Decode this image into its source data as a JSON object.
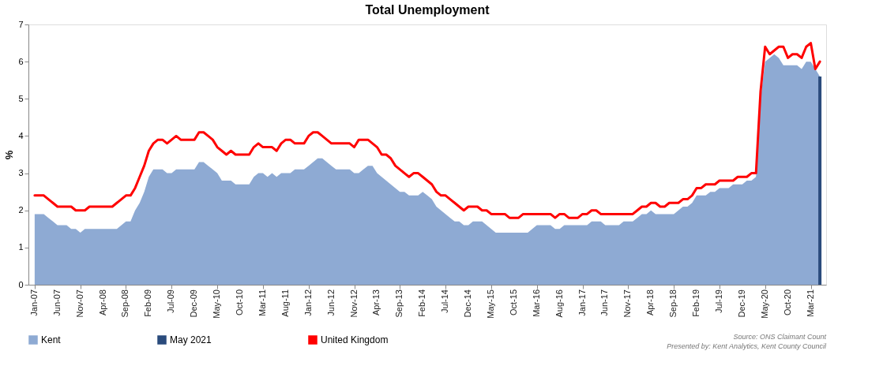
{
  "chart_data": {
    "type": "area",
    "title": "Total Unemployment",
    "ylabel": "%",
    "categories": [
      "Jan-07",
      null,
      null,
      null,
      null,
      "Jun-07",
      null,
      null,
      null,
      null,
      "Nov-07",
      null,
      null,
      null,
      null,
      "Apr-08",
      null,
      null,
      null,
      null,
      "Sep-08",
      null,
      null,
      null,
      null,
      "Feb-09",
      null,
      null,
      null,
      null,
      "Jul-09",
      null,
      null,
      null,
      null,
      "Dec-09",
      null,
      null,
      null,
      null,
      "May-10",
      null,
      null,
      null,
      null,
      "Oct-10",
      null,
      null,
      null,
      null,
      "Mar-11",
      null,
      null,
      null,
      null,
      "Aug-11",
      null,
      null,
      null,
      null,
      "Jan-12",
      null,
      null,
      null,
      null,
      "Jun-12",
      null,
      null,
      null,
      null,
      "Nov-12",
      null,
      null,
      null,
      null,
      "Apr-13",
      null,
      null,
      null,
      null,
      "Sep-13",
      null,
      null,
      null,
      null,
      "Feb-14",
      null,
      null,
      null,
      null,
      "Jul-14",
      null,
      null,
      null,
      null,
      "Dec-14",
      null,
      null,
      null,
      null,
      "May-15",
      null,
      null,
      null,
      null,
      "Oct-15",
      null,
      null,
      null,
      null,
      "Mar-16",
      null,
      null,
      null,
      null,
      "Aug-16",
      null,
      null,
      null,
      null,
      "Jan-17",
      null,
      null,
      null,
      null,
      "Jun-17",
      null,
      null,
      null,
      null,
      "Nov-17",
      null,
      null,
      null,
      null,
      "Apr-18",
      null,
      null,
      null,
      null,
      "Sep-18",
      null,
      null,
      null,
      null,
      "Feb-19",
      null,
      null,
      null,
      null,
      "Jul-19",
      null,
      null,
      null,
      null,
      "Dec-19",
      null,
      null,
      null,
      null,
      "May-20",
      null,
      null,
      null,
      null,
      "Oct-20",
      null,
      null,
      null,
      null,
      "Mar-21",
      null,
      null
    ],
    "series": [
      {
        "name": "Kent",
        "color": "#8eaad3",
        "values": [
          1.9,
          1.9,
          1.9,
          1.8,
          1.7,
          1.6,
          1.6,
          1.6,
          1.5,
          1.5,
          1.4,
          1.5,
          1.5,
          1.5,
          1.5,
          1.5,
          1.5,
          1.5,
          1.5,
          1.6,
          1.7,
          1.7,
          2.0,
          2.2,
          2.5,
          2.9,
          3.1,
          3.1,
          3.1,
          3.0,
          3.0,
          3.1,
          3.1,
          3.1,
          3.1,
          3.1,
          3.3,
          3.3,
          3.2,
          3.1,
          3.0,
          2.8,
          2.8,
          2.8,
          2.7,
          2.7,
          2.7,
          2.7,
          2.9,
          3.0,
          3.0,
          2.9,
          3.0,
          2.9,
          3.0,
          3.0,
          3.0,
          3.1,
          3.1,
          3.1,
          3.2,
          3.3,
          3.4,
          3.4,
          3.3,
          3.2,
          3.1,
          3.1,
          3.1,
          3.1,
          3.0,
          3.0,
          3.1,
          3.2,
          3.2,
          3.0,
          2.9,
          2.8,
          2.7,
          2.6,
          2.5,
          2.5,
          2.4,
          2.4,
          2.4,
          2.5,
          2.4,
          2.3,
          2.1,
          2.0,
          1.9,
          1.8,
          1.7,
          1.7,
          1.6,
          1.6,
          1.7,
          1.7,
          1.7,
          1.6,
          1.5,
          1.4,
          1.4,
          1.4,
          1.4,
          1.4,
          1.4,
          1.4,
          1.4,
          1.5,
          1.6,
          1.6,
          1.6,
          1.6,
          1.5,
          1.5,
          1.6,
          1.6,
          1.6,
          1.6,
          1.6,
          1.6,
          1.7,
          1.7,
          1.7,
          1.6,
          1.6,
          1.6,
          1.6,
          1.7,
          1.7,
          1.7,
          1.8,
          1.9,
          1.9,
          2.0,
          1.9,
          1.9,
          1.9,
          1.9,
          1.9,
          2.0,
          2.1,
          2.1,
          2.2,
          2.4,
          2.4,
          2.4,
          2.5,
          2.5,
          2.6,
          2.6,
          2.6,
          2.7,
          2.7,
          2.7,
          2.8,
          2.8,
          2.9,
          5.0,
          6.0,
          6.1,
          6.2,
          6.1,
          5.9,
          5.9,
          5.9,
          5.9,
          5.8,
          6.0,
          6.0,
          5.8,
          5.6
        ]
      },
      {
        "name": "May 2021",
        "type": "bar",
        "color": "#2a4b7c",
        "values": [
          null,
          null,
          null,
          null,
          null,
          null,
          null,
          null,
          null,
          null,
          null,
          null,
          null,
          null,
          null,
          null,
          null,
          null,
          null,
          null,
          null,
          null,
          null,
          null,
          null,
          null,
          null,
          null,
          null,
          null,
          null,
          null,
          null,
          null,
          null,
          null,
          null,
          null,
          null,
          null,
          null,
          null,
          null,
          null,
          null,
          null,
          null,
          null,
          null,
          null,
          null,
          null,
          null,
          null,
          null,
          null,
          null,
          null,
          null,
          null,
          null,
          null,
          null,
          null,
          null,
          null,
          null,
          null,
          null,
          null,
          null,
          null,
          null,
          null,
          null,
          null,
          null,
          null,
          null,
          null,
          null,
          null,
          null,
          null,
          null,
          null,
          null,
          null,
          null,
          null,
          null,
          null,
          null,
          null,
          null,
          null,
          null,
          null,
          null,
          null,
          null,
          null,
          null,
          null,
          null,
          null,
          null,
          null,
          null,
          null,
          null,
          null,
          null,
          null,
          null,
          null,
          null,
          null,
          null,
          null,
          null,
          null,
          null,
          null,
          null,
          null,
          null,
          null,
          null,
          null,
          null,
          null,
          null,
          null,
          null,
          null,
          null,
          null,
          null,
          null,
          null,
          null,
          null,
          null,
          null,
          null,
          null,
          null,
          null,
          null,
          null,
          null,
          null,
          null,
          null,
          null,
          null,
          null,
          null,
          null,
          null,
          null,
          null,
          null,
          null,
          null,
          null,
          null,
          null,
          null,
          null,
          null,
          5.6
        ]
      },
      {
        "name": "United Kingdom",
        "type": "line",
        "color": "#ff0000",
        "values": [
          2.4,
          2.4,
          2.4,
          2.3,
          2.2,
          2.1,
          2.1,
          2.1,
          2.1,
          2.0,
          2.0,
          2.0,
          2.1,
          2.1,
          2.1,
          2.1,
          2.1,
          2.1,
          2.2,
          2.3,
          2.4,
          2.4,
          2.6,
          2.9,
          3.2,
          3.6,
          3.8,
          3.9,
          3.9,
          3.8,
          3.9,
          4.0,
          3.9,
          3.9,
          3.9,
          3.9,
          4.1,
          4.1,
          4.0,
          3.9,
          3.7,
          3.6,
          3.5,
          3.6,
          3.5,
          3.5,
          3.5,
          3.5,
          3.7,
          3.8,
          3.7,
          3.7,
          3.7,
          3.6,
          3.8,
          3.9,
          3.9,
          3.8,
          3.8,
          3.8,
          4.0,
          4.1,
          4.1,
          4.0,
          3.9,
          3.8,
          3.8,
          3.8,
          3.8,
          3.8,
          3.7,
          3.9,
          3.9,
          3.9,
          3.8,
          3.7,
          3.5,
          3.5,
          3.4,
          3.2,
          3.1,
          3.0,
          2.9,
          3.0,
          3.0,
          2.9,
          2.8,
          2.7,
          2.5,
          2.4,
          2.4,
          2.3,
          2.2,
          2.1,
          2.0,
          2.1,
          2.1,
          2.1,
          2.0,
          2.0,
          1.9,
          1.9,
          1.9,
          1.9,
          1.8,
          1.8,
          1.8,
          1.9,
          1.9,
          1.9,
          1.9,
          1.9,
          1.9,
          1.9,
          1.8,
          1.9,
          1.9,
          1.8,
          1.8,
          1.8,
          1.9,
          1.9,
          2.0,
          2.0,
          1.9,
          1.9,
          1.9,
          1.9,
          1.9,
          1.9,
          1.9,
          1.9,
          2.0,
          2.1,
          2.1,
          2.2,
          2.2,
          2.1,
          2.1,
          2.2,
          2.2,
          2.2,
          2.3,
          2.3,
          2.4,
          2.6,
          2.6,
          2.7,
          2.7,
          2.7,
          2.8,
          2.8,
          2.8,
          2.8,
          2.9,
          2.9,
          2.9,
          3.0,
          3.0,
          5.2,
          6.4,
          6.2,
          6.3,
          6.4,
          6.4,
          6.1,
          6.2,
          6.2,
          6.1,
          6.4,
          6.5,
          5.8,
          6.0
        ]
      }
    ],
    "ylim": [
      0,
      7
    ],
    "yticks": [
      0,
      1,
      2,
      3,
      4,
      5,
      6,
      7
    ],
    "grid": false,
    "legend": "bottom",
    "line_style": "solid",
    "marker": "none",
    "annotations": [
      "Source: ONS Claimant Count",
      "Presented by: Kent Analytics, Kent County Council"
    ]
  }
}
